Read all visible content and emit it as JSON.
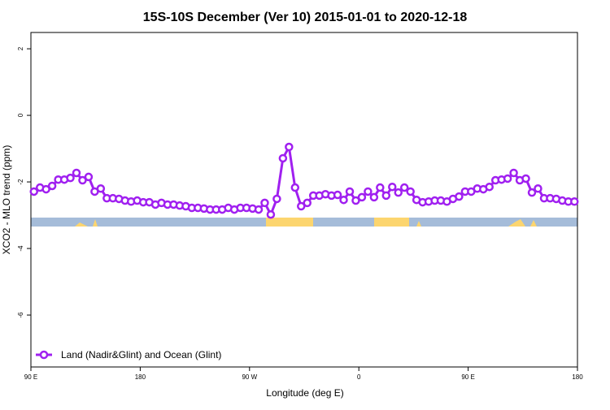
{
  "chart_data": {
    "type": "line",
    "title": "15S-10S December (Ver 10)   2015-01-01 to 2020-12-18",
    "x_label": "Longitude (deg E)",
    "y_label": "XCO2 - MLO trend (ppm)",
    "xlim": [
      90,
      540
    ],
    "ylim": [
      -7.56,
      2.49
    ],
    "xticks": [
      {
        "value": 90,
        "label": "90 E"
      },
      180,
      {
        "value": 270,
        "label": "90 W"
      },
      {
        "value": 360,
        "label": "0"
      },
      {
        "value": 450,
        "label": "90 E"
      },
      {
        "value": 540,
        "label": "180"
      }
    ],
    "yticks": [
      2,
      0,
      -2,
      -4,
      -6
    ],
    "legend": "bottom-left",
    "x": [
      92.5,
      97.5,
      102.5,
      107.5,
      112.5,
      117.5,
      122.5,
      127.5,
      132.5,
      137.5,
      142.5,
      147.5,
      152.5,
      157.5,
      162.5,
      167.5,
      172.5,
      177.5,
      182.5,
      187.5,
      192.5,
      197.5,
      202.5,
      207.5,
      212.5,
      217.5,
      222.5,
      227.5,
      232.5,
      237.5,
      242.5,
      247.5,
      252.5,
      257.5,
      262.5,
      267.5,
      272.5,
      277.5,
      282.5,
      287.5,
      292.5,
      297.5,
      302.5,
      307.5,
      312.5,
      317.5,
      322.5,
      327.5,
      332.5,
      337.5,
      342.5,
      347.5,
      352.5,
      357.5,
      362.5,
      367.5,
      372.5,
      377.5,
      382.5,
      387.5,
      392.5,
      397.5,
      402.5,
      407.5,
      412.5,
      417.5,
      422.5,
      427.5,
      432.5,
      437.5,
      442.5,
      447.5,
      452.5,
      457.5,
      462.5,
      467.5,
      472.5,
      477.5,
      482.5,
      487.5,
      492.5,
      497.5,
      502.5,
      507.5,
      512.5,
      517.5,
      522.5,
      527.5,
      532.5,
      537.5
    ],
    "series": [
      {
        "name": "Land (Nadir&Glint) and Ocean (Glint)",
        "color": "#a020f0",
        "values": [
          -2.29,
          -2.17,
          -2.22,
          -2.12,
          -1.93,
          -1.93,
          -1.88,
          -1.73,
          -1.95,
          -1.85,
          -2.29,
          -2.2,
          -2.49,
          -2.49,
          -2.51,
          -2.56,
          -2.59,
          -2.56,
          -2.61,
          -2.61,
          -2.68,
          -2.63,
          -2.68,
          -2.68,
          -2.71,
          -2.73,
          -2.78,
          -2.78,
          -2.8,
          -2.83,
          -2.83,
          -2.83,
          -2.78,
          -2.83,
          -2.78,
          -2.78,
          -2.8,
          -2.83,
          -2.63,
          -2.98,
          -2.51,
          -1.29,
          -0.95,
          -2.17,
          -2.73,
          -2.63,
          -2.41,
          -2.41,
          -2.37,
          -2.41,
          -2.39,
          -2.54,
          -2.29,
          -2.56,
          -2.46,
          -2.29,
          -2.46,
          -2.17,
          -2.41,
          -2.15,
          -2.32,
          -2.17,
          -2.29,
          -2.54,
          -2.61,
          -2.59,
          -2.56,
          -2.56,
          -2.59,
          -2.51,
          -2.44,
          -2.29,
          -2.29,
          -2.2,
          -2.22,
          -2.15,
          -1.95,
          -1.93,
          -1.9,
          -1.73,
          -1.95,
          -1.9,
          -2.32,
          -2.2,
          -2.49,
          -2.49,
          -2.51,
          -2.56,
          -2.59,
          -2.59
        ]
      }
    ]
  }
}
